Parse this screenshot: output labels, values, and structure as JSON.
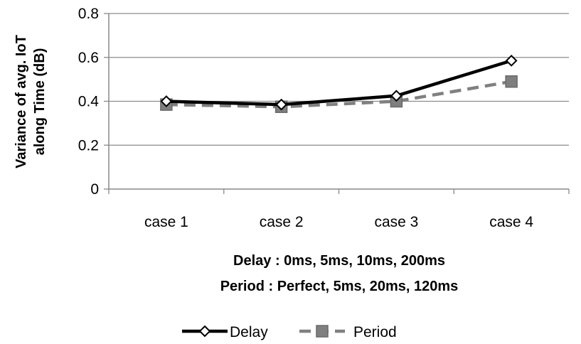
{
  "chart_data": {
    "type": "line",
    "categories": [
      "case 1",
      "case 2",
      "case 3",
      "case 4"
    ],
    "series": [
      {
        "name": "Delay",
        "values": [
          0.4,
          0.385,
          0.425,
          0.585
        ],
        "color": "#000000",
        "marker": "diamond",
        "line_style": "solid"
      },
      {
        "name": "Period",
        "values": [
          0.385,
          0.375,
          0.4,
          0.49
        ],
        "color": "#808080",
        "marker": "square",
        "line_style": "dashed"
      }
    ],
    "title": "",
    "ylabel": [
      "Variance of avg. IoT",
      "along Time (dB)"
    ],
    "xlabel_lines": [
      "Delay : 0ms, 5ms, 10ms,  200ms",
      "Period : Perfect, 5ms, 20ms, 120ms"
    ],
    "ylim": [
      0,
      0.8
    ],
    "yticks": [
      "0",
      "0.2",
      "0.4",
      "0.6",
      "0.8"
    ],
    "grid": true,
    "legend_position": "bottom"
  }
}
